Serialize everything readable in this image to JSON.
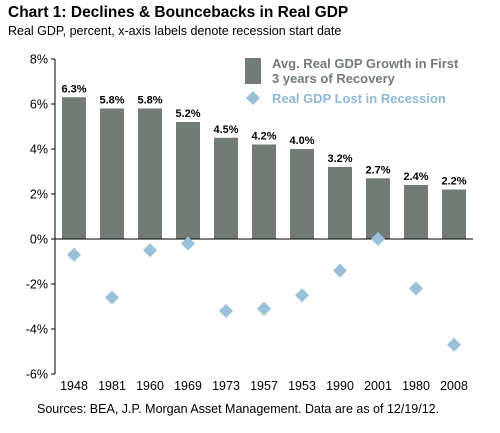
{
  "title": "Chart 1: Declines & Bouncebacks in Real GDP",
  "subtitle": "Real GDP, percent, x-axis labels denote recession start date",
  "source": "Sources: BEA, J.P. Morgan Asset Management. Data are as of 12/19/12.",
  "colors": {
    "bar": "#727c74",
    "diamond": "#99bfd9",
    "legend_bar_text": "#727c74",
    "legend_diamond_text": "#8fb8d4",
    "axis": "#000000"
  },
  "chart_data": {
    "type": "bar",
    "categories": [
      "1948",
      "1981",
      "1960",
      "1969",
      "1973",
      "1957",
      "1953",
      "1990",
      "2001",
      "1980",
      "2008"
    ],
    "series": [
      {
        "name": "Avg. Real GDP Growth in First 3 years of Recovery",
        "legend_lines": [
          "Avg. Real GDP Growth in First",
          "3 years of Recovery"
        ],
        "kind": "bar",
        "values": [
          6.3,
          5.8,
          5.8,
          5.2,
          4.5,
          4.2,
          4.0,
          3.2,
          2.7,
          2.4,
          2.2
        ],
        "labels": [
          "6.3%",
          "5.8%",
          "5.8%",
          "5.2%",
          "4.5%",
          "4.2%",
          "4.0%",
          "3.2%",
          "2.7%",
          "2.4%",
          "2.2%"
        ]
      },
      {
        "name": "Real GDP Lost in Recession",
        "kind": "scatter-diamond",
        "values": [
          -0.7,
          -2.6,
          -0.5,
          -0.2,
          -3.2,
          -3.1,
          -2.5,
          -1.4,
          0.0,
          -2.2,
          -4.7
        ]
      }
    ],
    "ylim": [
      -6,
      8
    ],
    "yticks": [
      8,
      6,
      4,
      2,
      0,
      -2,
      -4,
      -6
    ],
    "ytick_labels": [
      "8%",
      "6%",
      "4%",
      "2%",
      "0%",
      "-2%",
      "-4%",
      "-6%"
    ],
    "grid": false,
    "legend_position": "top-right"
  }
}
